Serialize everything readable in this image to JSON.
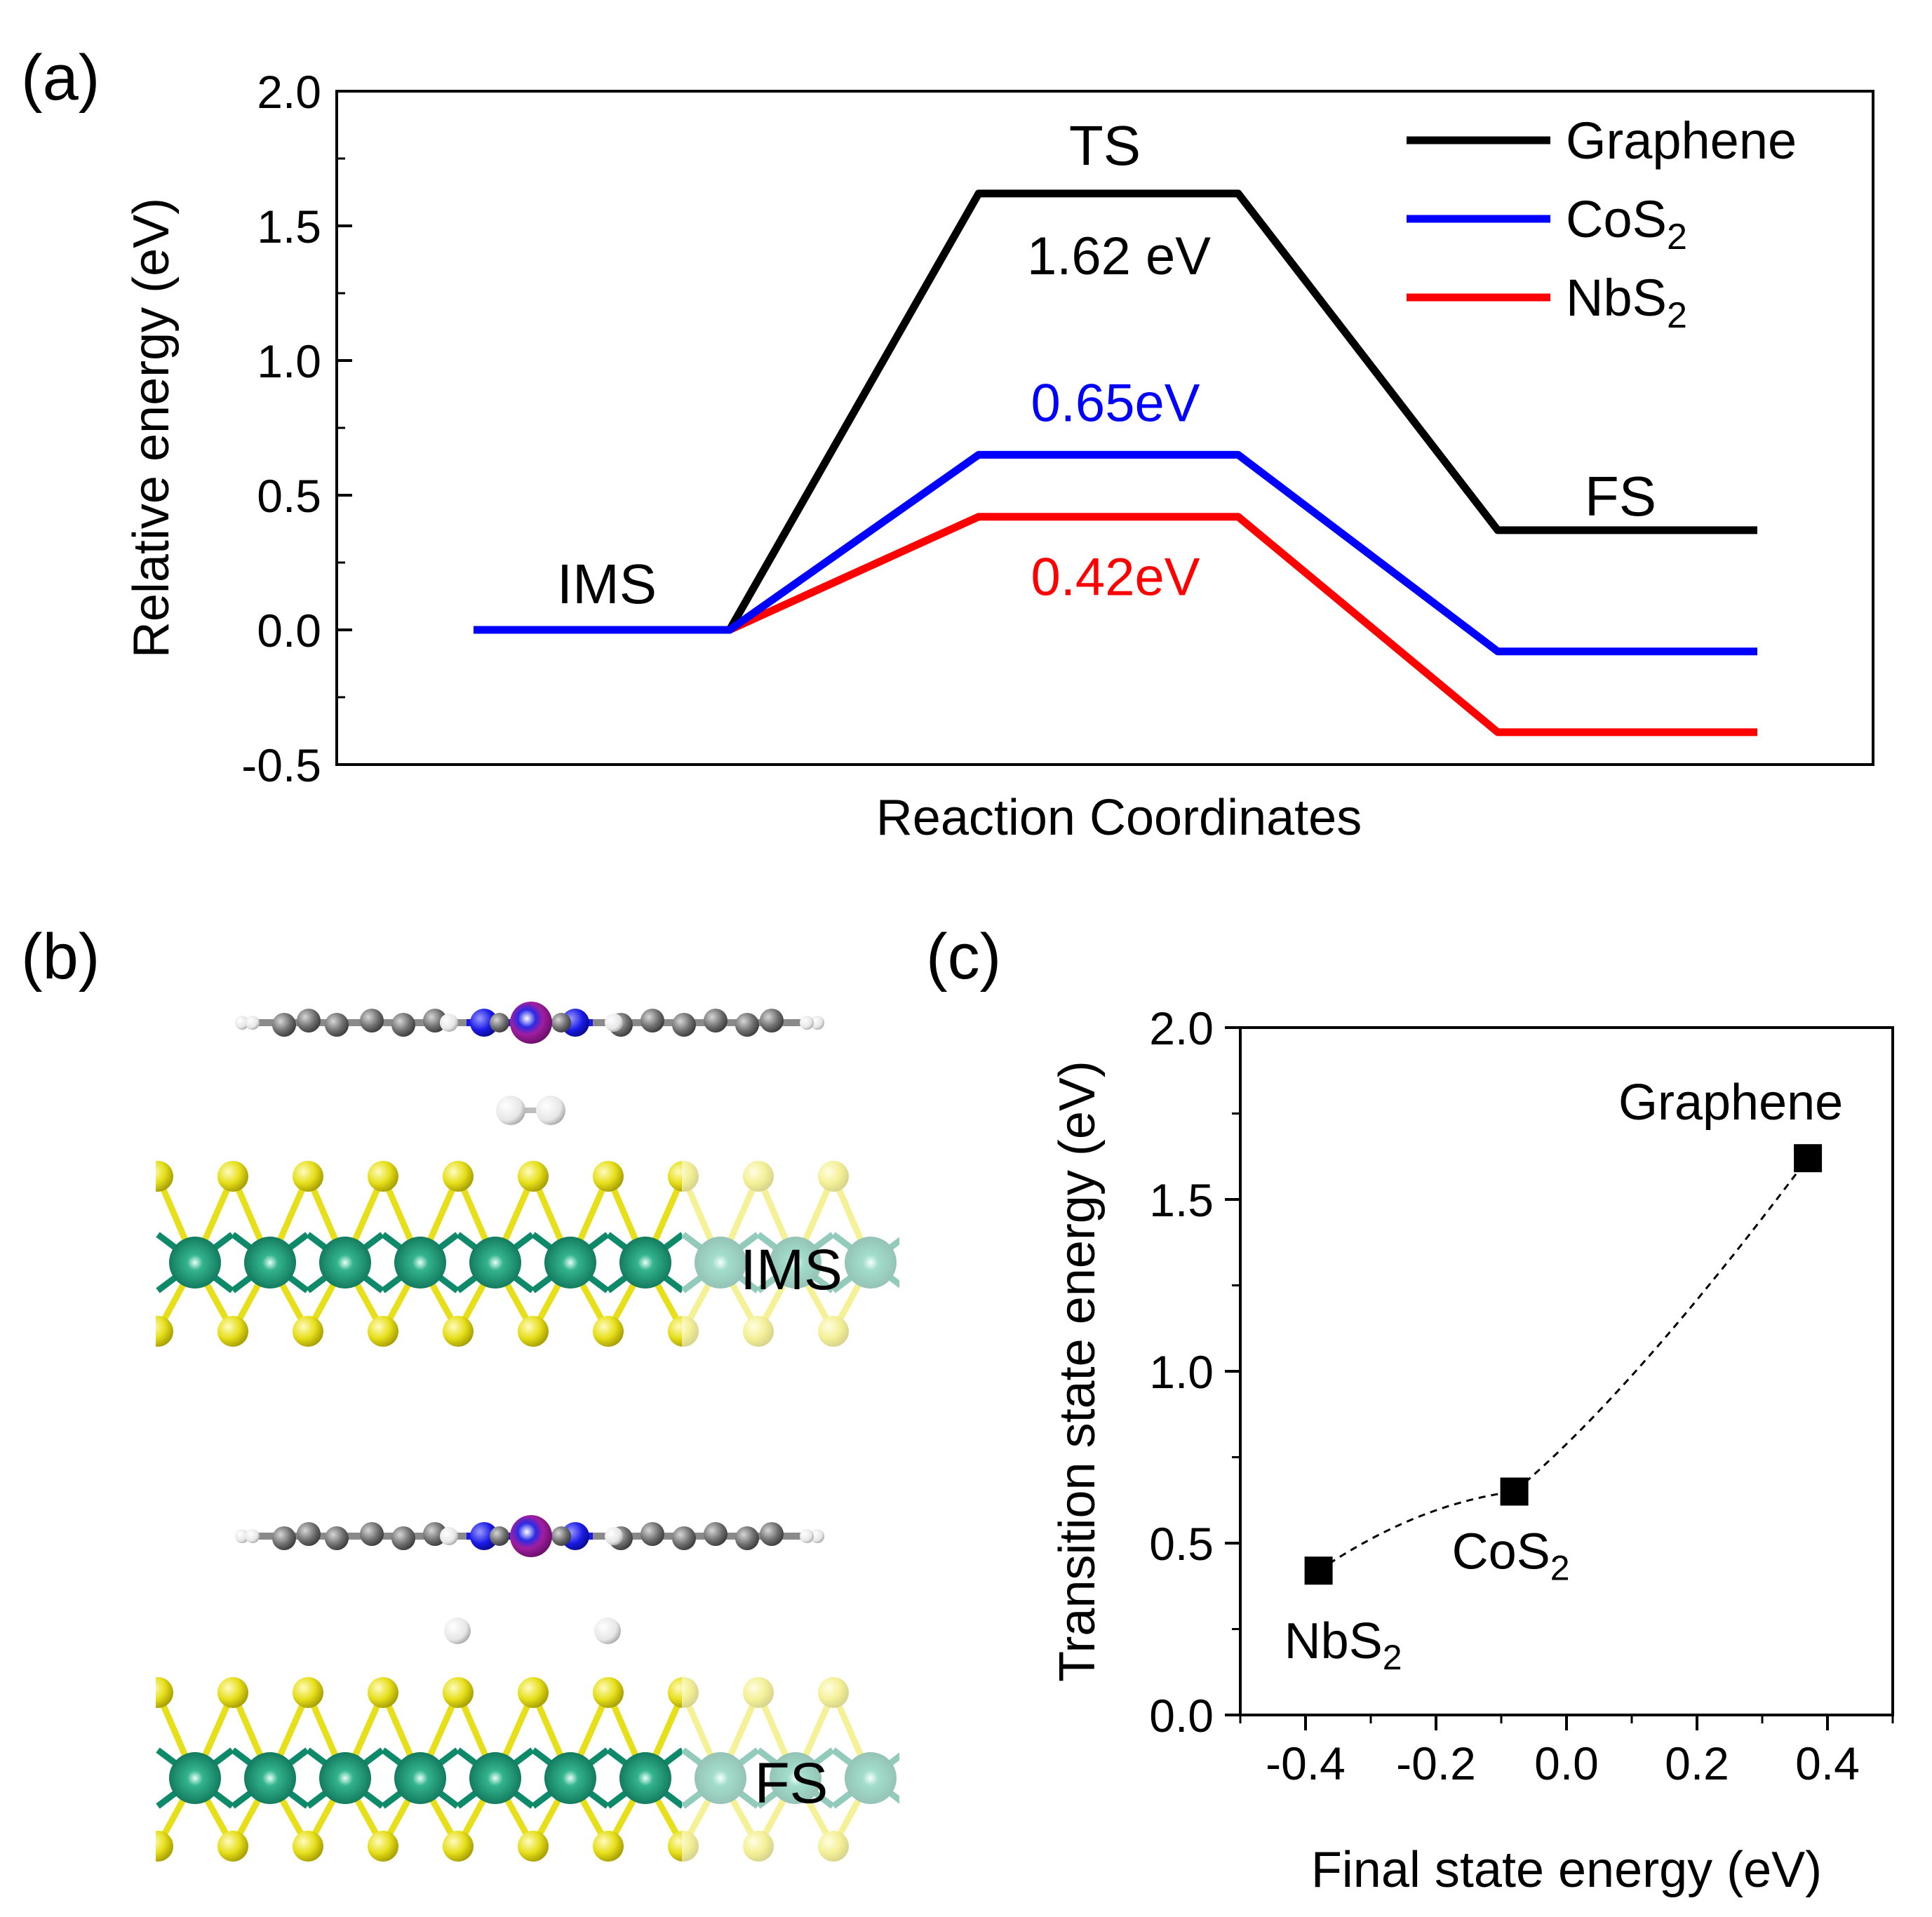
{
  "panel_labels": {
    "a": "(a)",
    "b": "(b)",
    "c": "(c)"
  },
  "colors": {
    "graphene": "#000000",
    "cos2": "#0000ff",
    "nbs2": "#ff0000",
    "sulfur": "#e6df1a",
    "metal": "#0e8a6a",
    "carbon": "#6f6f6f",
    "nitrogen": "#1a1ae6",
    "central_atom": "#a01ea0",
    "hydrogen": "#e6e6e6"
  },
  "panel_b": {
    "ims_label": "IMS",
    "fs_label": "FS",
    "atoms": [
      "sulfur",
      "metal",
      "carbon",
      "nitrogen",
      "central-atom",
      "hydrogen"
    ]
  },
  "chart_data": [
    {
      "type": "line",
      "panel": "(a)",
      "xlabel": "Reaction Coordinates",
      "ylabel": "Relative energy (eV)",
      "ylim": [
        -0.5,
        2.0
      ],
      "yticks": [
        "-0.5",
        "0.0",
        "0.5",
        "1.0",
        "1.5",
        "2.0"
      ],
      "stage_labels": [
        "IMS",
        "TS",
        "FS"
      ],
      "legend_position": "top-right",
      "series": [
        {
          "name": "Graphene",
          "sub": "",
          "key": "graphene",
          "ims": 0.0,
          "ts": 1.62,
          "fs": 0.37,
          "barrier_label": "1.62 eV"
        },
        {
          "name": "CoS",
          "sub": "2",
          "key": "cos2",
          "ims": 0.0,
          "ts": 0.65,
          "fs": -0.08,
          "barrier_label": "0.65eV"
        },
        {
          "name": "NbS",
          "sub": "2",
          "key": "nbs2",
          "ims": 0.0,
          "ts": 0.42,
          "fs": -0.38,
          "barrier_label": "0.42eV"
        }
      ]
    },
    {
      "type": "scatter",
      "panel": "(c)",
      "xlabel": "Final state energy (eV)",
      "ylabel": "Transition state energy (eV)",
      "xlim": [
        -0.5,
        0.5
      ],
      "ylim": [
        0.0,
        2.0
      ],
      "xticks": [
        "-0.4",
        "-0.2",
        "0.0",
        "0.2",
        "0.4"
      ],
      "yticks": [
        "0.0",
        "0.5",
        "1.0",
        "1.5",
        "2.0"
      ],
      "points": [
        {
          "name": "NbS",
          "sub": "2",
          "x": -0.38,
          "y": 0.42
        },
        {
          "name": "CoS",
          "sub": "2",
          "x": -0.08,
          "y": 0.65
        },
        {
          "name": "Graphene",
          "sub": "",
          "x": 0.37,
          "y": 1.62
        }
      ],
      "trend": "dashed"
    }
  ]
}
